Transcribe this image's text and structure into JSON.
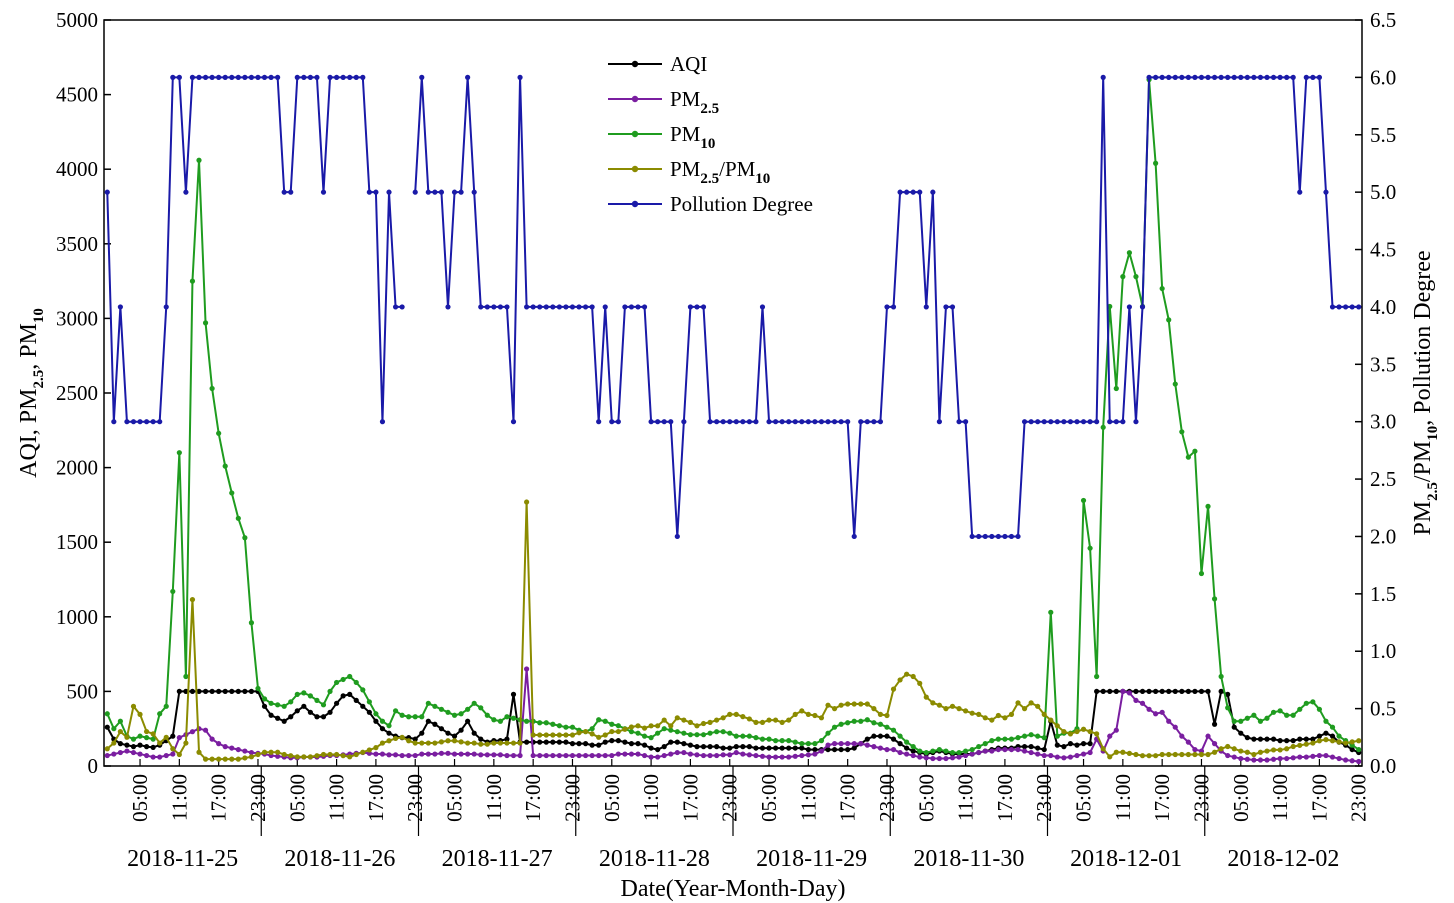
{
  "chart_data": {
    "type": "line",
    "xlabel": "Date(Year-Month-Day)",
    "ylabel_left": {
      "t1": "AQI, PM",
      "s1": "2.5",
      "t2": ", PM",
      "s2": "10"
    },
    "ylabel_right": {
      "t1": "PM",
      "s1": "2.5",
      "t2": "/PM",
      "s2": "10",
      "t3": ",  Pollution Degree"
    },
    "ylim_left": [
      0,
      5000
    ],
    "ylim_right": [
      0,
      6.5
    ],
    "yticks_left": [
      "0",
      "500",
      "1000",
      "1500",
      "2000",
      "2500",
      "3000",
      "3500",
      "4000",
      "4500",
      "5000"
    ],
    "yticks_right": [
      "0.0",
      "0.5",
      "1.0",
      "1.5",
      "2.0",
      "2.5",
      "3.0",
      "3.5",
      "4.0",
      "4.5",
      "5.0",
      "5.5",
      "6.0",
      "6.5"
    ],
    "days": [
      "2018-11-25",
      "2018-11-26",
      "2018-11-27",
      "2018-11-28",
      "2018-11-29",
      "2018-11-30",
      "2018-12-01",
      "2018-12-02"
    ],
    "hour_ticks": [
      "05:00",
      "11:00",
      "17:00",
      "23:00"
    ],
    "hours_per_day": 24,
    "legend": {
      "position": "top-center",
      "entries": [
        {
          "series": "aqi",
          "t": "AQI",
          "s": ""
        },
        {
          "series": "pm25",
          "t": "PM",
          "s": "2.5"
        },
        {
          "series": "pm10",
          "t": "PM",
          "s": "10"
        },
        {
          "series": "ratio",
          "t": "PM",
          "s": "2.5",
          "t2": "/PM",
          "s2": "10"
        },
        {
          "series": "degree",
          "t": "Pollution Degree",
          "s": ""
        }
      ]
    },
    "series": [
      {
        "key": "aqi",
        "name": "AQI",
        "axis": "left",
        "color": "#000000",
        "values": [
          260,
          180,
          150,
          140,
          130,
          140,
          130,
          125,
          140,
          170,
          200,
          500,
          500,
          500,
          500,
          500,
          500,
          500,
          500,
          500,
          500,
          500,
          500,
          500,
          400,
          340,
          320,
          300,
          330,
          370,
          400,
          360,
          330,
          330,
          360,
          420,
          470,
          480,
          440,
          400,
          360,
          300,
          250,
          220,
          200,
          190,
          190,
          180,
          220,
          300,
          280,
          250,
          220,
          200,
          240,
          300,
          220,
          180,
          160,
          170,
          170,
          180,
          480,
          160,
          160,
          160,
          160,
          160,
          160,
          160,
          160,
          150,
          150,
          150,
          140,
          140,
          160,
          170,
          170,
          160,
          150,
          150,
          140,
          120,
          110,
          130,
          160,
          160,
          150,
          140,
          130,
          130,
          130,
          130,
          120,
          120,
          130,
          130,
          130,
          120,
          120,
          120,
          120,
          120,
          120,
          120,
          120,
          110,
          110,
          110,
          110,
          110,
          110,
          110,
          120,
          150,
          180,
          200,
          200,
          200,
          180,
          150,
          120,
          100,
          90,
          80,
          90,
          100,
          90,
          80,
          80,
          80,
          80,
          90,
          100,
          110,
          120,
          120,
          120,
          130,
          130,
          130,
          120,
          110,
          300,
          140,
          130,
          150,
          140,
          150,
          150,
          500,
          500,
          500,
          500,
          500,
          500,
          500,
          500,
          500,
          500,
          500,
          500,
          500,
          500,
          500,
          500,
          500,
          500,
          280,
          500,
          480,
          260,
          220,
          190,
          180,
          180,
          180,
          180,
          170,
          170,
          170,
          180,
          180,
          180,
          200,
          220,
          200,
          160,
          140,
          110,
          90
        ]
      },
      {
        "key": "pm25",
        "name": "PM2.5",
        "axis": "left",
        "color": "#7a1ea0",
        "values": [
          70,
          80,
          90,
          100,
          90,
          80,
          70,
          60,
          60,
          70,
          80,
          190,
          210,
          230,
          250,
          240,
          180,
          150,
          130,
          120,
          110,
          100,
          90,
          85,
          80,
          70,
          65,
          60,
          55,
          55,
          60,
          60,
          60,
          65,
          70,
          70,
          75,
          80,
          85,
          90,
          85,
          80,
          80,
          75,
          75,
          70,
          70,
          70,
          80,
          80,
          80,
          85,
          85,
          80,
          80,
          80,
          80,
          75,
          75,
          75,
          75,
          70,
          70,
          70,
          650,
          70,
          70,
          70,
          70,
          70,
          70,
          70,
          70,
          70,
          70,
          70,
          70,
          70,
          80,
          80,
          80,
          80,
          70,
          60,
          60,
          70,
          80,
          90,
          90,
          80,
          75,
          70,
          70,
          70,
          75,
          75,
          90,
          80,
          75,
          70,
          65,
          60,
          60,
          60,
          60,
          65,
          70,
          75,
          80,
          100,
          140,
          150,
          150,
          150,
          150,
          150,
          140,
          130,
          120,
          110,
          110,
          90,
          80,
          70,
          60,
          55,
          50,
          50,
          50,
          55,
          60,
          70,
          80,
          90,
          100,
          100,
          110,
          110,
          110,
          110,
          100,
          90,
          80,
          70,
          70,
          60,
          55,
          60,
          70,
          80,
          90,
          180,
          100,
          200,
          240,
          500,
          490,
          440,
          420,
          380,
          350,
          360,
          300,
          260,
          200,
          160,
          110,
          100,
          200,
          150,
          100,
          70,
          60,
          50,
          45,
          40,
          40,
          40,
          45,
          50,
          50,
          55,
          60,
          60,
          65,
          70,
          70,
          60,
          50,
          40,
          35,
          30
        ]
      },
      {
        "key": "pm10",
        "name": "PM10",
        "axis": "left",
        "color": "#1f9c1f",
        "values": [
          350,
          250,
          300,
          200,
          180,
          200,
          190,
          180,
          350,
          400,
          1170,
          2100,
          600,
          3250,
          4060,
          2970,
          2530,
          2230,
          2010,
          1830,
          1660,
          1530,
          960,
          520,
          450,
          420,
          410,
          400,
          430,
          480,
          490,
          470,
          440,
          410,
          500,
          560,
          580,
          600,
          560,
          510,
          430,
          350,
          300,
          270,
          370,
          340,
          330,
          330,
          330,
          420,
          400,
          380,
          360,
          340,
          350,
          380,
          420,
          390,
          340,
          310,
          300,
          330,
          320,
          310,
          300,
          300,
          290,
          290,
          280,
          270,
          260,
          260,
          240,
          230,
          250,
          310,
          300,
          280,
          270,
          250,
          230,
          220,
          200,
          190,
          220,
          250,
          240,
          230,
          220,
          210,
          210,
          210,
          220,
          230,
          230,
          220,
          200,
          200,
          200,
          190,
          180,
          180,
          170,
          170,
          170,
          160,
          150,
          150,
          150,
          170,
          220,
          260,
          280,
          290,
          300,
          300,
          310,
          290,
          280,
          260,
          240,
          200,
          160,
          130,
          100,
          90,
          100,
          110,
          100,
          90,
          90,
          100,
          110,
          130,
          150,
          170,
          180,
          180,
          180,
          190,
          200,
          210,
          200,
          190,
          1030,
          200,
          220,
          220,
          250,
          1780,
          1460,
          600,
          2270,
          3080,
          2530,
          3280,
          3440,
          3280,
          3080,
          4600,
          4040,
          3200,
          2990,
          2560,
          2240,
          2070,
          2110,
          1290,
          1740,
          1120,
          600,
          390,
          300,
          300,
          320,
          340,
          300,
          320,
          360,
          370,
          340,
          340,
          380,
          420,
          430,
          380,
          300,
          260,
          200,
          170,
          140,
          110
        ]
      },
      {
        "key": "ratio",
        "name": "PM2.5/PM10",
        "axis": "right",
        "color": "#8b8b00",
        "values": [
          0.15,
          0.2,
          0.3,
          0.25,
          0.52,
          0.45,
          0.3,
          0.28,
          0.2,
          0.25,
          0.15,
          0.1,
          0.2,
          1.45,
          0.12,
          0.06,
          0.06,
          0.06,
          0.06,
          0.06,
          0.06,
          0.07,
          0.08,
          0.1,
          0.12,
          0.12,
          0.12,
          0.1,
          0.09,
          0.08,
          0.08,
          0.08,
          0.09,
          0.1,
          0.1,
          0.1,
          0.09,
          0.08,
          0.1,
          0.12,
          0.14,
          0.16,
          0.2,
          0.22,
          0.24,
          0.25,
          0.22,
          0.2,
          0.2,
          0.2,
          0.2,
          0.21,
          0.22,
          0.22,
          0.21,
          0.2,
          0.2,
          0.19,
          0.19,
          0.2,
          0.2,
          0.2,
          0.2,
          0.2,
          2.3,
          0.27,
          0.27,
          0.27,
          0.27,
          0.27,
          0.27,
          0.27,
          0.29,
          0.3,
          0.28,
          0.25,
          0.27,
          0.3,
          0.3,
          0.32,
          0.34,
          0.35,
          0.33,
          0.35,
          0.35,
          0.4,
          0.35,
          0.42,
          0.4,
          0.38,
          0.35,
          0.37,
          0.38,
          0.4,
          0.42,
          0.45,
          0.45,
          0.43,
          0.41,
          0.38,
          0.38,
          0.4,
          0.4,
          0.38,
          0.4,
          0.45,
          0.48,
          0.45,
          0.44,
          0.42,
          0.53,
          0.5,
          0.53,
          0.54,
          0.54,
          0.54,
          0.54,
          0.5,
          0.45,
          0.44,
          0.67,
          0.75,
          0.8,
          0.78,
          0.72,
          0.6,
          0.55,
          0.53,
          0.5,
          0.52,
          0.5,
          0.48,
          0.46,
          0.45,
          0.42,
          0.4,
          0.44,
          0.42,
          0.45,
          0.55,
          0.5,
          0.55,
          0.52,
          0.45,
          0.4,
          0.35,
          0.3,
          0.28,
          0.3,
          0.32,
          0.3,
          0.28,
          0.15,
          0.08,
          0.12,
          0.12,
          0.11,
          0.1,
          0.09,
          0.09,
          0.09,
          0.1,
          0.1,
          0.1,
          0.1,
          0.1,
          0.1,
          0.1,
          0.1,
          0.12,
          0.15,
          0.17,
          0.15,
          0.13,
          0.12,
          0.1,
          0.12,
          0.13,
          0.14,
          0.14,
          0.15,
          0.17,
          0.18,
          0.19,
          0.2,
          0.22,
          0.23,
          0.22,
          0.21,
          0.2,
          0.21,
          0.22
        ]
      },
      {
        "key": "degree",
        "name": "Pollution Degree",
        "axis": "right",
        "color": "#1a1aa8",
        "values": [
          5,
          3,
          4,
          3,
          3,
          3,
          3,
          3,
          3,
          4,
          6,
          6,
          5,
          6,
          6,
          6,
          6,
          6,
          6,
          6,
          6,
          6,
          6,
          6,
          6,
          6,
          6,
          5,
          5,
          6,
          6,
          6,
          6,
          5,
          6,
          6,
          6,
          6,
          6,
          6,
          5,
          5,
          3,
          5,
          4,
          4,
          null,
          5,
          6,
          5,
          5,
          5,
          4,
          5,
          5,
          6,
          5,
          4,
          4,
          4,
          4,
          4,
          3,
          6,
          4,
          4,
          4,
          4,
          4,
          4,
          4,
          4,
          4,
          4,
          4,
          3,
          4,
          3,
          3,
          4,
          4,
          4,
          4,
          3,
          3,
          3,
          3,
          2,
          3,
          4,
          4,
          4,
          3,
          3,
          3,
          3,
          3,
          3,
          3,
          3,
          4,
          3,
          3,
          3,
          3,
          3,
          3,
          3,
          3,
          3,
          3,
          3,
          3,
          3,
          2,
          3,
          3,
          3,
          3,
          4,
          4,
          5,
          5,
          5,
          5,
          4,
          5,
          3,
          4,
          4,
          3,
          3,
          2,
          2,
          2,
          2,
          2,
          2,
          2,
          2,
          3,
          3,
          3,
          3,
          3,
          3,
          3,
          3,
          3,
          3,
          3,
          3,
          6,
          3,
          3,
          3,
          4,
          3,
          4,
          6,
          6,
          6,
          6,
          6,
          6,
          6,
          6,
          6,
          6,
          6,
          6,
          6,
          6,
          6,
          6,
          6,
          6,
          6,
          6,
          6,
          6,
          6,
          5,
          6,
          6,
          6,
          5,
          4,
          4,
          4,
          4,
          4
        ]
      }
    ]
  }
}
